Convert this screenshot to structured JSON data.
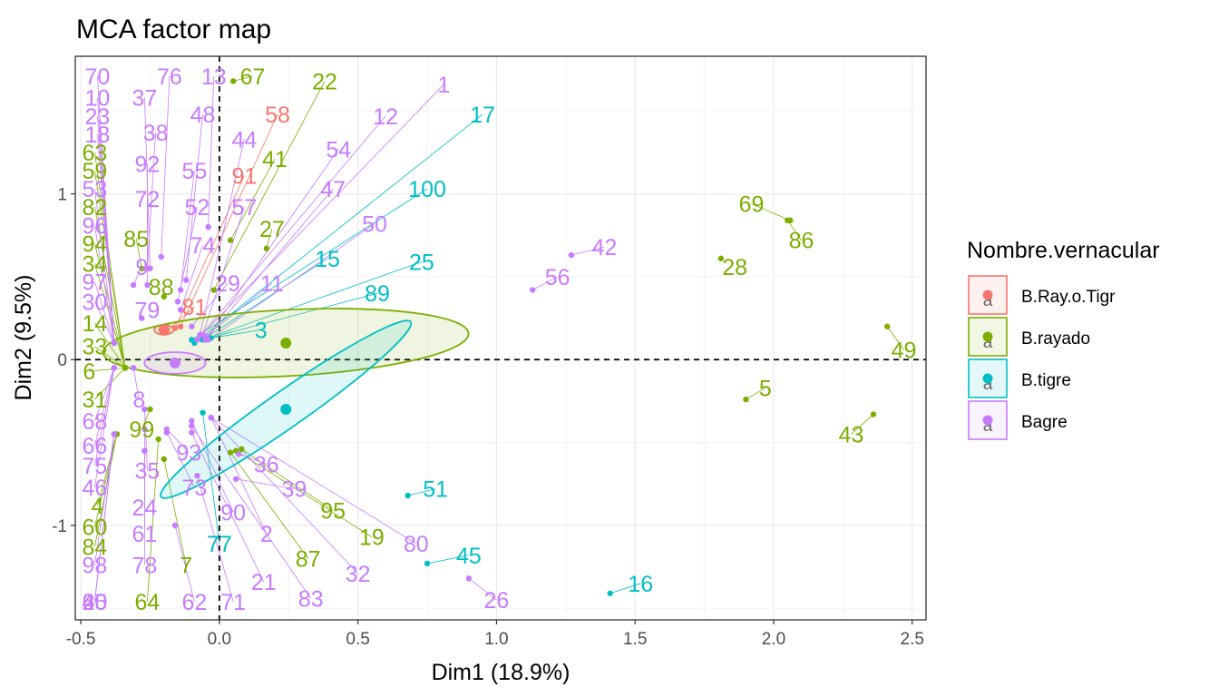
{
  "chart_data": {
    "type": "scatter",
    "title": "MCA factor map",
    "xlabel": "Dim1 (18.9%)",
    "ylabel": "Dim2 (9.5%)",
    "xlim": [
      -0.52,
      2.55
    ],
    "ylim": [
      -1.57,
      1.83
    ],
    "xticks": [
      -0.5,
      0.0,
      0.5,
      1.0,
      1.5,
      2.0,
      2.5
    ],
    "xtick_labels": [
      "-0.5",
      "0.0",
      "0.5",
      "1.0",
      "1.5",
      "2.0",
      "2.5"
    ],
    "yticks": [
      -1,
      0,
      1
    ],
    "ytick_labels": [
      "-1",
      "0",
      "1"
    ],
    "grid": true,
    "legend": {
      "title": "Nombre.vernacular",
      "position": "right",
      "key_glyph": "a"
    },
    "series": [
      {
        "name": "B.Ray.o.Tigr",
        "color": "#F8766D",
        "centroid": [
          -0.2,
          0.18
        ],
        "ellipse": {
          "cx": -0.2,
          "cy": 0.18,
          "rx": 0.035,
          "ry": 0.03,
          "angle": 0
        },
        "points": [
          {
            "label": "58",
            "x": -0.14,
            "y": 0.2,
            "lx": 0.21,
            "ly": 1.48
          },
          {
            "label": "91",
            "x": -0.16,
            "y": 0.19,
            "lx": 0.09,
            "ly": 1.11
          },
          {
            "label": "81",
            "x": -0.19,
            "y": 0.17,
            "lx": -0.09,
            "ly": 0.32
          }
        ]
      },
      {
        "name": "B.rayado",
        "color": "#7CAE00",
        "centroid": [
          0.24,
          0.1
        ],
        "ellipse": {
          "cx": 0.24,
          "cy": 0.1,
          "rx": 0.66,
          "ry": 0.2,
          "angle": 3
        },
        "points": [
          {
            "label": "67",
            "x": 0.05,
            "y": 1.68,
            "lx": 0.12,
            "ly": 1.71
          },
          {
            "label": "22",
            "x": -0.02,
            "y": 0.42,
            "lx": 0.38,
            "ly": 1.68
          },
          {
            "label": "41",
            "x": 0.04,
            "y": 0.72,
            "lx": 0.2,
            "ly": 1.21
          },
          {
            "label": "27",
            "x": 0.17,
            "y": 0.67,
            "lx": 0.19,
            "ly": 0.79
          },
          {
            "label": "85",
            "x": -0.28,
            "y": 0.55,
            "lx": -0.3,
            "ly": 0.73
          },
          {
            "label": "88",
            "x": -0.2,
            "y": 0.38,
            "lx": -0.21,
            "ly": 0.44
          },
          {
            "label": "69",
            "x": 2.06,
            "y": 0.84,
            "lx": 1.92,
            "ly": 0.94
          },
          {
            "label": "86",
            "x": 2.05,
            "y": 0.84,
            "lx": 2.1,
            "ly": 0.72
          },
          {
            "label": "28",
            "x": 1.81,
            "y": 0.61,
            "lx": 1.86,
            "ly": 0.56
          },
          {
            "label": "49",
            "x": 2.41,
            "y": 0.2,
            "lx": 2.47,
            "ly": 0.06
          },
          {
            "label": "5",
            "x": 1.9,
            "y": -0.24,
            "lx": 1.97,
            "ly": -0.17
          },
          {
            "label": "43",
            "x": 2.36,
            "y": -0.33,
            "lx": 2.28,
            "ly": -0.45
          },
          {
            "label": "63",
            "x": -0.34,
            "y": -0.05,
            "lx": -0.45,
            "ly": 1.25
          },
          {
            "label": "59",
            "x": -0.34,
            "y": -0.05,
            "lx": -0.45,
            "ly": 1.14
          },
          {
            "label": "82",
            "x": -0.34,
            "y": -0.05,
            "lx": -0.45,
            "ly": 0.92
          },
          {
            "label": "94",
            "x": -0.34,
            "y": -0.05,
            "lx": -0.45,
            "ly": 0.7
          },
          {
            "label": "34",
            "x": -0.34,
            "y": -0.05,
            "lx": -0.45,
            "ly": 0.58
          },
          {
            "label": "14",
            "x": -0.34,
            "y": -0.05,
            "lx": -0.45,
            "ly": 0.22
          },
          {
            "label": "33",
            "x": -0.34,
            "y": -0.05,
            "lx": -0.45,
            "ly": 0.08
          },
          {
            "label": "6",
            "x": -0.34,
            "y": -0.05,
            "lx": -0.47,
            "ly": -0.07
          },
          {
            "label": "31",
            "x": -0.34,
            "y": -0.05,
            "lx": -0.45,
            "ly": -0.24
          },
          {
            "label": "99",
            "x": -0.25,
            "y": -0.3,
            "lx": -0.28,
            "ly": -0.42
          },
          {
            "label": "60",
            "x": -0.37,
            "y": -0.45,
            "lx": -0.45,
            "ly": -1.01
          },
          {
            "label": "84",
            "x": -0.37,
            "y": -0.45,
            "lx": -0.45,
            "ly": -1.13
          },
          {
            "label": "4",
            "x": -0.37,
            "y": -0.45,
            "lx": -0.44,
            "ly": -0.88
          },
          {
            "label": "7",
            "x": -0.2,
            "y": -0.6,
            "lx": -0.12,
            "ly": -1.24
          },
          {
            "label": "64",
            "x": -0.22,
            "y": -0.48,
            "lx": -0.26,
            "ly": -1.46
          },
          {
            "label": "95",
            "x": 0.08,
            "y": -0.54,
            "lx": 0.41,
            "ly": -0.91
          },
          {
            "label": "19",
            "x": 0.06,
            "y": -0.55,
            "lx": 0.55,
            "ly": -1.07
          },
          {
            "label": "87",
            "x": 0.04,
            "y": -0.56,
            "lx": 0.32,
            "ly": -1.2
          }
        ]
      },
      {
        "name": "B.tigre",
        "color": "#00BFC4",
        "centroid": [
          0.24,
          -0.3
        ],
        "ellipse": {
          "cx": 0.24,
          "cy": -0.3,
          "rx": 0.55,
          "ry": 0.11,
          "angle": 35
        },
        "points": [
          {
            "label": "17",
            "x": -0.09,
            "y": 0.1,
            "lx": 0.95,
            "ly": 1.48
          },
          {
            "label": "100",
            "x": -0.1,
            "y": 0.12,
            "lx": 0.75,
            "ly": 1.03
          },
          {
            "label": "15",
            "x": -0.06,
            "y": 0.12,
            "lx": 0.39,
            "ly": 0.61
          },
          {
            "label": "25",
            "x": -0.06,
            "y": 0.12,
            "lx": 0.73,
            "ly": 0.59
          },
          {
            "label": "89",
            "x": -0.06,
            "y": 0.12,
            "lx": 0.57,
            "ly": 0.4
          },
          {
            "label": "3",
            "x": -0.03,
            "y": 0.13,
            "lx": 0.15,
            "ly": 0.18
          },
          {
            "label": "51",
            "x": 0.68,
            "y": -0.82,
            "lx": 0.78,
            "ly": -0.78
          },
          {
            "label": "45",
            "x": 0.75,
            "y": -1.23,
            "lx": 0.9,
            "ly": -1.18
          },
          {
            "label": "16",
            "x": 1.41,
            "y": -1.41,
            "lx": 1.52,
            "ly": -1.35
          },
          {
            "label": "77",
            "x": -0.06,
            "y": -0.32,
            "lx": 0.0,
            "ly": -1.11
          }
        ]
      },
      {
        "name": "Bagre",
        "color": "#C77CFF",
        "centroid": [
          -0.16,
          -0.02
        ],
        "ellipse": {
          "cx": -0.16,
          "cy": -0.02,
          "rx": 0.11,
          "ry": 0.065,
          "angle": 0
        },
        "points": [
          {
            "label": "70",
            "x": -0.38,
            "y": 0.1,
            "lx": -0.44,
            "ly": 1.71
          },
          {
            "label": "76",
            "x": -0.21,
            "y": 0.62,
            "lx": -0.18,
            "ly": 1.71
          },
          {
            "label": "13",
            "x": -0.04,
            "y": 0.8,
            "lx": -0.02,
            "ly": 1.71
          },
          {
            "label": "10",
            "x": -0.38,
            "y": 0.1,
            "lx": -0.44,
            "ly": 1.58
          },
          {
            "label": "37",
            "x": -0.25,
            "y": 0.55,
            "lx": -0.27,
            "ly": 1.58
          },
          {
            "label": "48",
            "x": -0.12,
            "y": 0.48,
            "lx": -0.06,
            "ly": 1.48
          },
          {
            "label": "1",
            "x": -0.08,
            "y": 0.12,
            "lx": 0.81,
            "ly": 1.66
          },
          {
            "label": "23",
            "x": -0.38,
            "y": 0.1,
            "lx": -0.44,
            "ly": 1.47
          },
          {
            "label": "38",
            "x": -0.26,
            "y": 0.55,
            "lx": -0.23,
            "ly": 1.37
          },
          {
            "label": "12",
            "x": -0.08,
            "y": 0.12,
            "lx": 0.6,
            "ly": 1.47
          },
          {
            "label": "18",
            "x": -0.38,
            "y": 0.1,
            "lx": -0.44,
            "ly": 1.36
          },
          {
            "label": "44",
            "x": -0.07,
            "y": 0.15,
            "lx": 0.09,
            "ly": 1.33
          },
          {
            "label": "92",
            "x": -0.26,
            "y": 0.55,
            "lx": -0.26,
            "ly": 1.18
          },
          {
            "label": "55",
            "x": -0.14,
            "y": 0.42,
            "lx": -0.09,
            "ly": 1.14
          },
          {
            "label": "54",
            "x": -0.05,
            "y": 0.12,
            "lx": 0.43,
            "ly": 1.27
          },
          {
            "label": "53",
            "x": -0.38,
            "y": 0.1,
            "lx": -0.45,
            "ly": 1.03
          },
          {
            "label": "72",
            "x": -0.26,
            "y": 0.45,
            "lx": -0.26,
            "ly": 0.97
          },
          {
            "label": "52",
            "x": -0.15,
            "y": 0.35,
            "lx": -0.08,
            "ly": 0.92
          },
          {
            "label": "57",
            "x": -0.06,
            "y": 0.15,
            "lx": 0.09,
            "ly": 0.92
          },
          {
            "label": "47",
            "x": -0.05,
            "y": 0.12,
            "lx": 0.41,
            "ly": 1.03
          },
          {
            "label": "96",
            "x": -0.38,
            "y": 0.1,
            "lx": -0.45,
            "ly": 0.81
          },
          {
            "label": "50",
            "x": -0.04,
            "y": 0.12,
            "lx": 0.56,
            "ly": 0.82
          },
          {
            "label": "74",
            "x": -0.14,
            "y": 0.3,
            "lx": -0.06,
            "ly": 0.69
          },
          {
            "label": "42",
            "x": 1.27,
            "y": 0.63,
            "lx": 1.39,
            "ly": 0.68
          },
          {
            "label": "9",
            "x": -0.31,
            "y": 0.45,
            "lx": -0.28,
            "ly": 0.56
          },
          {
            "label": "56",
            "x": 1.13,
            "y": 0.42,
            "lx": 1.22,
            "ly": 0.5
          },
          {
            "label": "97",
            "x": -0.38,
            "y": 0.1,
            "lx": -0.45,
            "ly": 0.47
          },
          {
            "label": "29",
            "x": -0.1,
            "y": 0.2,
            "lx": 0.03,
            "ly": 0.46
          },
          {
            "label": "11",
            "x": -0.05,
            "y": 0.14,
            "lx": 0.19,
            "ly": 0.46
          },
          {
            "label": "30",
            "x": -0.38,
            "y": 0.1,
            "lx": -0.45,
            "ly": 0.35
          },
          {
            "label": "79",
            "x": -0.28,
            "y": 0.25,
            "lx": -0.26,
            "ly": 0.3
          },
          {
            "label": "8",
            "x": -0.31,
            "y": -0.05,
            "lx": -0.29,
            "ly": -0.24
          },
          {
            "label": "68",
            "x": -0.38,
            "y": -0.05,
            "lx": -0.45,
            "ly": -0.37
          },
          {
            "label": "66",
            "x": -0.38,
            "y": -0.05,
            "lx": -0.45,
            "ly": -0.52
          },
          {
            "label": "93",
            "x": -0.19,
            "y": -0.42,
            "lx": -0.11,
            "ly": -0.56
          },
          {
            "label": "75",
            "x": -0.38,
            "y": -0.05,
            "lx": -0.45,
            "ly": -0.64
          },
          {
            "label": "35",
            "x": -0.27,
            "y": -0.3,
            "lx": -0.26,
            "ly": -0.67
          },
          {
            "label": "36",
            "x": 0.07,
            "y": -0.57,
            "lx": 0.17,
            "ly": -0.63
          },
          {
            "label": "46",
            "x": -0.38,
            "y": -0.05,
            "lx": -0.45,
            "ly": -0.77
          },
          {
            "label": "73",
            "x": -0.19,
            "y": -0.44,
            "lx": -0.09,
            "ly": -0.77
          },
          {
            "label": "39",
            "x": 0.06,
            "y": -0.72,
            "lx": 0.27,
            "ly": -0.78
          },
          {
            "label": "24",
            "x": -0.27,
            "y": -0.42,
            "lx": -0.27,
            "ly": -0.89
          },
          {
            "label": "90",
            "x": -0.1,
            "y": -0.37,
            "lx": 0.05,
            "ly": -0.92
          },
          {
            "label": "61",
            "x": -0.27,
            "y": -0.55,
            "lx": -0.27,
            "ly": -1.05
          },
          {
            "label": "2",
            "x": -0.03,
            "y": -0.35,
            "lx": 0.17,
            "ly": -1.05
          },
          {
            "label": "80",
            "x": -0.03,
            "y": -0.35,
            "lx": 0.71,
            "ly": -1.11
          },
          {
            "label": "98",
            "x": -0.38,
            "y": -0.45,
            "lx": -0.45,
            "ly": -1.24
          },
          {
            "label": "78",
            "x": -0.27,
            "y": -0.55,
            "lx": -0.27,
            "ly": -1.24
          },
          {
            "label": "32",
            "x": -0.03,
            "y": -0.35,
            "lx": 0.5,
            "ly": -1.29
          },
          {
            "label": "21",
            "x": -0.1,
            "y": -0.44,
            "lx": 0.16,
            "ly": -1.34
          },
          {
            "label": "83",
            "x": -0.1,
            "y": -0.4,
            "lx": 0.33,
            "ly": -1.44
          },
          {
            "label": "26",
            "x": 0.9,
            "y": -1.32,
            "lx": 1.0,
            "ly": -1.45
          },
          {
            "label": "62",
            "x": -0.16,
            "y": -1.0,
            "lx": -0.09,
            "ly": -1.46
          },
          {
            "label": "71",
            "x": -0.08,
            "y": -0.7,
            "lx": 0.05,
            "ly": -1.46
          },
          {
            "label": "40",
            "x": -0.38,
            "y": -0.45,
            "lx": -0.45,
            "ly": -1.46
          },
          {
            "label": "65",
            "x": -0.38,
            "y": -0.45,
            "lx": -0.45,
            "ly": -1.46
          },
          {
            "label": "20",
            "x": -0.38,
            "y": -0.45,
            "lx": -0.45,
            "ly": -1.46
          }
        ]
      }
    ]
  }
}
